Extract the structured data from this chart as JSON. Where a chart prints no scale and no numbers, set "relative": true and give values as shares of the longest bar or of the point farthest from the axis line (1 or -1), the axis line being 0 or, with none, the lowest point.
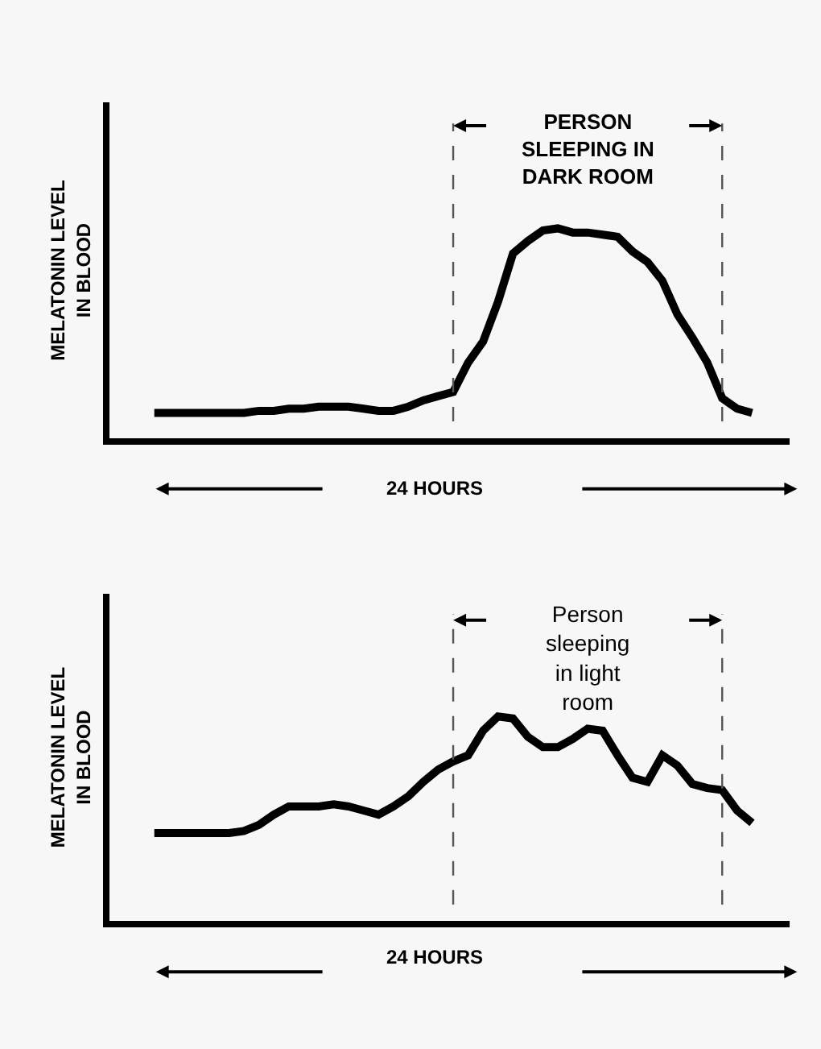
{
  "chart_data": [
    {
      "type": "line",
      "relative": true,
      "ylabel": "MELATONIN LEVEL\nIN BLOOD",
      "xlabel": "24 HOURS",
      "annotations": [
        "PERSON\nSLEEPING IN\nDARK ROOM"
      ],
      "categories": [
        null,
        null,
        null,
        null,
        null,
        null,
        null,
        null,
        null,
        null,
        null,
        null,
        null,
        null,
        null,
        null,
        null,
        null,
        null,
        null,
        null,
        null,
        null,
        null,
        null,
        null,
        null,
        null,
        null,
        null,
        null,
        null,
        null,
        null,
        null,
        null,
        null,
        null,
        null,
        null,
        null
      ],
      "series": [
        {
          "color": "#000000",
          "values": [
            0.12,
            0.12,
            0.12,
            0.12,
            0.12,
            0.12,
            0.12,
            0.13,
            0.13,
            0.14,
            0.14,
            0.15,
            0.15,
            0.15,
            0.14,
            0.13,
            0.13,
            0.15,
            0.18,
            0.2,
            0.22,
            0.36,
            0.46,
            0.65,
            0.88,
            0.94,
            0.99,
            1,
            0.98,
            0.98,
            0.97,
            0.96,
            0.89,
            0.84,
            0.75,
            0.59,
            0.48,
            0.36,
            0.19,
            0.14,
            0.12
          ]
        }
      ]
    },
    {
      "type": "line",
      "relative": true,
      "ylabel": "MELATONIN LEVEL\nIN BLOOD",
      "xlabel": "24 HOURS",
      "annotations": [
        "Person\nsleeping\nin light\nroom"
      ],
      "categories": [
        null,
        null,
        null,
        null,
        null,
        null,
        null,
        null,
        null,
        null,
        null,
        null,
        null,
        null,
        null,
        null,
        null,
        null,
        null,
        null,
        null,
        null,
        null,
        null,
        null,
        null,
        null,
        null,
        null,
        null,
        null,
        null,
        null,
        null,
        null,
        null,
        null,
        null,
        null,
        null,
        null
      ],
      "series": [
        {
          "color": "#000000",
          "values": [
            0.43,
            0.43,
            0.43,
            0.43,
            0.43,
            0.43,
            0.44,
            0.47,
            0.52,
            0.56,
            0.56,
            0.56,
            0.57,
            0.56,
            0.54,
            0.52,
            0.56,
            0.61,
            0.68,
            0.74,
            0.78,
            0.81,
            0.93,
            1,
            0.99,
            0.9,
            0.85,
            0.85,
            0.89,
            0.94,
            0.93,
            0.81,
            0.7,
            0.68,
            0.81,
            0.76,
            0.67,
            0.65,
            0.64,
            0.54,
            0.48
          ]
        }
      ]
    }
  ]
}
